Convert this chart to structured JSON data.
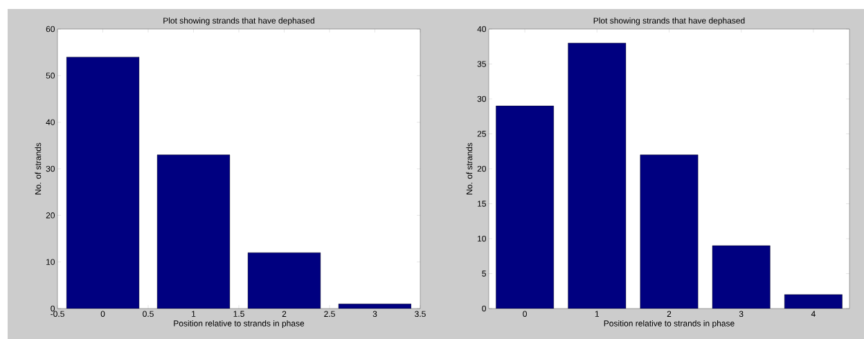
{
  "chart_data": [
    {
      "type": "bar",
      "title": "Plot showing strands that have dephased",
      "xlabel": "Position relative to strands in phase",
      "ylabel": "No. of strands",
      "x": [
        0,
        1,
        2,
        3
      ],
      "values": [
        54,
        33,
        12,
        1
      ],
      "color": "#000080",
      "xlim": [
        -0.5,
        3.5
      ],
      "xticks": [
        -0.5,
        0,
        0.5,
        1,
        1.5,
        2,
        2.5,
        3,
        3.5
      ],
      "ylim": [
        0,
        60
      ],
      "yticks": [
        0,
        10,
        20,
        30,
        40,
        50,
        60
      ]
    },
    {
      "type": "bar",
      "title": "Plot showing strands that have dephased",
      "xlabel": "Position relative to strands in phase",
      "ylabel": "No. of strands",
      "x": [
        0,
        1,
        2,
        3,
        4
      ],
      "values": [
        29,
        38,
        22,
        9,
        2
      ],
      "color": "#000080",
      "xlim": [
        -0.5,
        4.5
      ],
      "xticks": [
        0,
        1,
        2,
        3,
        4
      ],
      "ylim": [
        0,
        40
      ],
      "yticks": [
        0,
        5,
        10,
        15,
        20,
        25,
        30,
        35,
        40
      ]
    }
  ]
}
